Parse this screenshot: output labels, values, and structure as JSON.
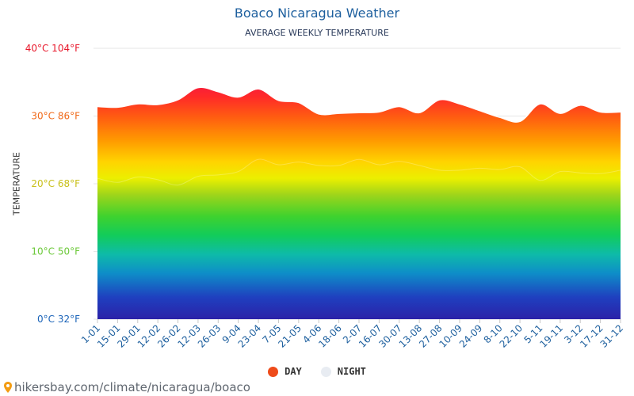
{
  "title": "Boaco Nicaragua Weather",
  "subtitle": "AVERAGE WEEKLY TEMPERATURE",
  "footer": "hikersbay.com/climate/nicaragua/boaco",
  "colors": {
    "title": "#1d5f9e",
    "day": "#ee4b1a",
    "night": "#e8ecf2",
    "grid": "#e6e6e6",
    "footer": "#606770"
  },
  "legend": [
    {
      "label": "DAY",
      "color": "#ee4b1a"
    },
    {
      "label": "NIGHT",
      "color": "#e8ecf2"
    }
  ],
  "chart_data": {
    "type": "area",
    "ylabel": "TEMPERATURE",
    "ylim": [
      0,
      40
    ],
    "yticks": [
      {
        "value": 0,
        "label": "0°C 32°F",
        "color": "#1a63b8"
      },
      {
        "value": 10,
        "label": "10°C 50°F",
        "color": "#6cc93a"
      },
      {
        "value": 20,
        "label": "20°C 68°F",
        "color": "#c9c01a"
      },
      {
        "value": 30,
        "label": "30°C 86°F",
        "color": "#f06a1a"
      },
      {
        "value": 40,
        "label": "40°C 104°F",
        "color": "#e8192c"
      }
    ],
    "categories": [
      "1-01",
      "15-01",
      "29-01",
      "12-02",
      "26-02",
      "12-03",
      "26-03",
      "9-04",
      "23-04",
      "7-05",
      "21-05",
      "4-06",
      "18-06",
      "2-07",
      "16-07",
      "30-07",
      "13-08",
      "27-08",
      "10-09",
      "24-09",
      "8-10",
      "22-10",
      "5-11",
      "19-11",
      "3-12",
      "17-12",
      "31-12"
    ],
    "series": [
      {
        "name": "DAY",
        "values": [
          31.4,
          31.3,
          31.8,
          31.7,
          32.4,
          34.2,
          33.6,
          32.8,
          34.0,
          32.3,
          32.0,
          30.3,
          30.4,
          30.5,
          30.6,
          31.4,
          30.5,
          32.4,
          31.8,
          30.8,
          29.8,
          29.2,
          31.8,
          30.4,
          31.6,
          30.6,
          30.6
        ]
      },
      {
        "name": "NIGHT",
        "values": [
          20.8,
          20.2,
          21.0,
          20.6,
          19.8,
          21.1,
          21.3,
          21.8,
          23.6,
          22.8,
          23.2,
          22.7,
          22.7,
          23.6,
          22.8,
          23.3,
          22.7,
          22.0,
          22.0,
          22.3,
          22.1,
          22.5,
          20.5,
          21.8,
          21.6,
          21.5,
          22.0
        ]
      }
    ]
  }
}
